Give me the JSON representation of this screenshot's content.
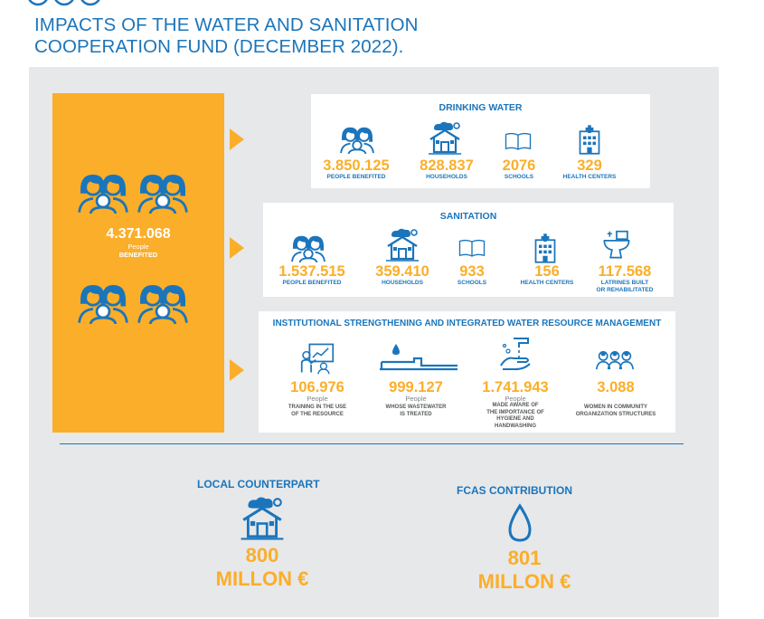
{
  "title_lines": [
    "IMPACTS OF THE WATER AND SANITATION",
    "COOPERATION FUND (DECEMBER 2022)."
  ],
  "total": {
    "value": "4.371.068",
    "unit": "People",
    "label": "BENEFITED"
  },
  "drinking_water": {
    "title": "DRINKING WATER",
    "stats": [
      {
        "value": "3.850.125",
        "label": "PEOPLE BENEFITED",
        "icon": "people-icon"
      },
      {
        "value": "828.837",
        "label": "HOUSEHOLDS",
        "icon": "house-icon"
      },
      {
        "value": "2076",
        "label": "SCHOOLS",
        "icon": "book-icon"
      },
      {
        "value": "329",
        "label": "HEALTH CENTERS",
        "icon": "hospital-icon"
      }
    ]
  },
  "sanitation": {
    "title": "SANITATION",
    "stats": [
      {
        "value": "1.537.515",
        "label": "PEOPLE BENEFITED",
        "icon": "people-icon"
      },
      {
        "value": "359.410",
        "label": "HOUSEHOLDS",
        "icon": "house-icon"
      },
      {
        "value": "933",
        "label": "SCHOOLS",
        "icon": "book-icon"
      },
      {
        "value": "156",
        "label": "HEALTH CENTERS",
        "icon": "hospital-icon"
      },
      {
        "value": "117.568",
        "label": "LATRINES BUILT OR REHABILITATED",
        "icon": "toilet-icon"
      }
    ]
  },
  "institutional": {
    "title": "INSTITUTIONAL STRENGTHENING AND INTEGRATED WATER RESOURCE MANAGEMENT",
    "stats": [
      {
        "value": "106.976",
        "unit": "People",
        "label": "TRAINING IN THE USE OF THE RESOURCE",
        "icon": "training-icon"
      },
      {
        "value": "999.127",
        "unit": "People",
        "label": "WHOSE WASTEWATER IS TREATED",
        "icon": "wastewater-icon"
      },
      {
        "value": "1.741.943",
        "unit": "People",
        "label": "MADE AWARE OF THE IMPORTANCE OF HYGIENE AND HANDWASHING",
        "icon": "handwashing-icon"
      },
      {
        "value": "3.088",
        "label": "WOMEN IN COMMUNITY ORGANIZATION STRUCTURES",
        "icon": "women-group-icon"
      }
    ]
  },
  "local_counterpart": {
    "title": "LOCAL COUNTERPART",
    "amount": "800",
    "unit": "MILLON €",
    "icon": "house-icon"
  },
  "fcas_contribution": {
    "title": "FCAS CONTRIBUTION",
    "amount": "801",
    "unit": "MILLON €",
    "icon": "water-drop-icon"
  },
  "colors": {
    "accent_blue": "#1b75bb",
    "accent_orange": "#fbae29",
    "panel_gray": "#e7e8ea"
  }
}
